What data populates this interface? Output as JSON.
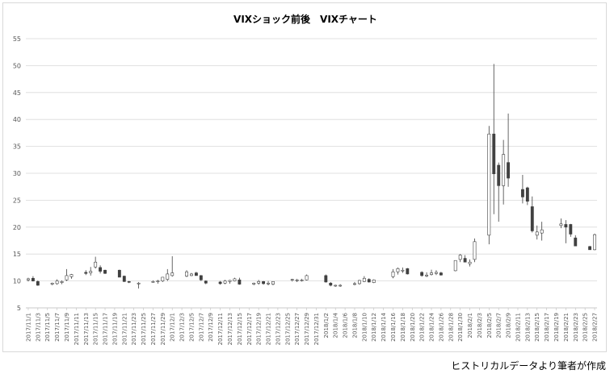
{
  "chart_data": {
    "type": "candlestick",
    "title": "VIXショック前後　VIXチャート",
    "xlabel": "",
    "ylabel": "",
    "ylim": [
      5,
      55
    ],
    "yticks": [
      5,
      10,
      15,
      20,
      25,
      30,
      35,
      40,
      45,
      50,
      55
    ],
    "grid": true,
    "up_color": "#ffffff",
    "down_color": "#404040",
    "x_tick_labels": [
      "2017/11/1",
      "2017/11/3",
      "2017/11/5",
      "2017/11/7",
      "2017/11/9",
      "2017/11/11",
      "2017/11/13",
      "2017/11/15",
      "2017/11/17",
      "2017/11/19",
      "2017/11/21",
      "2017/11/23",
      "2017/11/25",
      "2017/11/27",
      "2017/11/29",
      "2017/12/1",
      "2017/12/3",
      "2017/12/5",
      "2017/12/7",
      "2017/12/9",
      "2017/12/11",
      "2017/12/13",
      "2017/12/15",
      "2017/12/17",
      "2017/12/19",
      "2017/12/21",
      "2017/12/23",
      "2017/12/25",
      "2017/12/27",
      "2017/12/29",
      "2017/12/31",
      "2018/1/2",
      "2018/1/4",
      "2018/1/6",
      "2018/1/8",
      "2018/1/10",
      "2018/1/12",
      "2018/1/14",
      "2018/1/16",
      "2018/1/18",
      "2018/1/20",
      "2018/1/22",
      "2018/1/24",
      "2018/1/26",
      "2018/1/28",
      "2018/1/30",
      "2018/2/1",
      "2018/2/3",
      "2018/2/5",
      "2018/2/7",
      "2018/2/9",
      "2018/2/11",
      "2018/2/13",
      "2018/2/15",
      "2018/2/17",
      "2018/2/19",
      "2018/2/21",
      "2018/2/23",
      "2018/2/25",
      "2018/2/27"
    ],
    "candles": [
      {
        "date": "2017/11/1",
        "open": 10.2,
        "high": 10.6,
        "low": 9.9,
        "close": 10.4
      },
      {
        "date": "2017/11/2",
        "open": 10.5,
        "high": 10.9,
        "low": 9.9,
        "close": 10.0
      },
      {
        "date": "2017/11/3",
        "open": 9.9,
        "high": 10.1,
        "low": 9.1,
        "close": 9.2
      },
      {
        "date": "2017/11/6",
        "open": 9.4,
        "high": 9.7,
        "low": 9.2,
        "close": 9.6
      },
      {
        "date": "2017/11/7",
        "open": 9.5,
        "high": 10.3,
        "low": 9.3,
        "close": 10.0
      },
      {
        "date": "2017/11/8",
        "open": 9.7,
        "high": 10.1,
        "low": 9.4,
        "close": 9.9
      },
      {
        "date": "2017/11/9",
        "open": 10.2,
        "high": 12.2,
        "low": 10.0,
        "close": 11.0
      },
      {
        "date": "2017/11/10",
        "open": 10.8,
        "high": 11.3,
        "low": 10.4,
        "close": 11.2
      },
      {
        "date": "2017/11/13",
        "open": 11.6,
        "high": 12.0,
        "low": 11.1,
        "close": 11.4
      },
      {
        "date": "2017/11/14",
        "open": 11.5,
        "high": 12.6,
        "low": 11.0,
        "close": 11.8
      },
      {
        "date": "2017/11/15",
        "open": 12.6,
        "high": 14.5,
        "low": 12.3,
        "close": 13.5
      },
      {
        "date": "2017/11/16",
        "open": 12.5,
        "high": 12.9,
        "low": 11.4,
        "close": 11.8
      },
      {
        "date": "2017/11/17",
        "open": 12.0,
        "high": 12.1,
        "low": 11.3,
        "close": 11.4
      },
      {
        "date": "2017/11/20",
        "open": 12.0,
        "high": 12.1,
        "low": 10.7,
        "close": 10.7
      },
      {
        "date": "2017/11/21",
        "open": 10.9,
        "high": 11.0,
        "low": 9.8,
        "close": 9.9
      },
      {
        "date": "2017/11/22",
        "open": 9.9,
        "high": 10.0,
        "low": 9.6,
        "close": 9.8
      },
      {
        "date": "2017/11/24",
        "open": 9.6,
        "high": 9.8,
        "low": 8.6,
        "close": 9.6
      },
      {
        "date": "2017/11/27",
        "open": 9.9,
        "high": 10.1,
        "low": 9.7,
        "close": 9.9
      },
      {
        "date": "2017/11/28",
        "open": 9.9,
        "high": 10.2,
        "low": 9.5,
        "close": 10.0
      },
      {
        "date": "2017/11/29",
        "open": 10.0,
        "high": 10.7,
        "low": 9.8,
        "close": 10.7
      },
      {
        "date": "2017/11/30",
        "open": 10.3,
        "high": 12.2,
        "low": 10.0,
        "close": 11.3
      },
      {
        "date": "2017/12/1",
        "open": 11.0,
        "high": 14.6,
        "low": 10.8,
        "close": 11.5
      },
      {
        "date": "2017/12/4",
        "open": 10.9,
        "high": 12.0,
        "low": 10.7,
        "close": 11.7
      },
      {
        "date": "2017/12/5",
        "open": 11.0,
        "high": 11.5,
        "low": 10.9,
        "close": 11.3
      },
      {
        "date": "2017/12/6",
        "open": 11.5,
        "high": 11.7,
        "low": 11.0,
        "close": 11.0
      },
      {
        "date": "2017/12/7",
        "open": 11.0,
        "high": 11.1,
        "low": 10.0,
        "close": 10.2
      },
      {
        "date": "2017/12/8",
        "open": 10.0,
        "high": 10.1,
        "low": 9.4,
        "close": 9.6
      },
      {
        "date": "2017/12/11",
        "open": 9.8,
        "high": 10.0,
        "low": 9.3,
        "close": 9.5
      },
      {
        "date": "2017/12/12",
        "open": 9.6,
        "high": 10.2,
        "low": 9.4,
        "close": 10.0
      },
      {
        "date": "2017/12/13",
        "open": 9.9,
        "high": 10.2,
        "low": 9.5,
        "close": 10.1
      },
      {
        "date": "2017/12/14",
        "open": 10.0,
        "high": 10.6,
        "low": 9.9,
        "close": 10.4
      },
      {
        "date": "2017/12/15",
        "open": 10.2,
        "high": 10.6,
        "low": 9.3,
        "close": 9.4
      },
      {
        "date": "2017/12/18",
        "open": 9.4,
        "high": 9.7,
        "low": 9.2,
        "close": 9.6
      },
      {
        "date": "2017/12/19",
        "open": 9.6,
        "high": 10.2,
        "low": 9.3,
        "close": 9.9
      },
      {
        "date": "2017/12/20",
        "open": 9.9,
        "high": 10.0,
        "low": 9.3,
        "close": 9.5
      },
      {
        "date": "2017/12/21",
        "open": 9.5,
        "high": 10.0,
        "low": 9.2,
        "close": 9.6
      },
      {
        "date": "2017/12/22",
        "open": 9.4,
        "high": 9.9,
        "low": 9.2,
        "close": 9.9
      },
      {
        "date": "2017/12/26",
        "open": 10.2,
        "high": 10.4,
        "low": 9.9,
        "close": 10.3
      },
      {
        "date": "2017/12/27",
        "open": 10.1,
        "high": 10.4,
        "low": 9.8,
        "close": 10.2
      },
      {
        "date": "2017/12/28",
        "open": 10.1,
        "high": 10.4,
        "low": 9.9,
        "close": 10.2
      },
      {
        "date": "2017/12/29",
        "open": 10.2,
        "high": 11.2,
        "low": 10.1,
        "close": 11.0
      },
      {
        "date": "2018/1/2",
        "open": 11.0,
        "high": 11.2,
        "low": 9.7,
        "close": 9.8
      },
      {
        "date": "2018/1/3",
        "open": 9.6,
        "high": 9.8,
        "low": 9.0,
        "close": 9.2
      },
      {
        "date": "2018/1/4",
        "open": 9.2,
        "high": 9.3,
        "low": 8.9,
        "close": 9.2
      },
      {
        "date": "2018/1/5",
        "open": 9.1,
        "high": 9.4,
        "low": 8.9,
        "close": 9.2
      },
      {
        "date": "2018/1/8",
        "open": 9.4,
        "high": 9.8,
        "low": 9.2,
        "close": 9.5
      },
      {
        "date": "2018/1/9",
        "open": 9.5,
        "high": 10.2,
        "low": 9.3,
        "close": 10.1
      },
      {
        "date": "2018/1/10",
        "open": 9.9,
        "high": 10.9,
        "low": 9.8,
        "close": 10.5
      },
      {
        "date": "2018/1/11",
        "open": 10.3,
        "high": 10.5,
        "low": 9.7,
        "close": 9.8
      },
      {
        "date": "2018/1/12",
        "open": 9.7,
        "high": 10.3,
        "low": 9.6,
        "close": 10.2
      },
      {
        "date": "2018/1/16",
        "open": 10.8,
        "high": 12.2,
        "low": 10.5,
        "close": 11.7
      },
      {
        "date": "2018/1/17",
        "open": 11.7,
        "high": 12.5,
        "low": 11.2,
        "close": 12.3
      },
      {
        "date": "2018/1/18",
        "open": 12.0,
        "high": 12.5,
        "low": 11.5,
        "close": 12.0
      },
      {
        "date": "2018/1/19",
        "open": 12.3,
        "high": 12.4,
        "low": 11.2,
        "close": 11.3
      },
      {
        "date": "2018/1/22",
        "open": 11.6,
        "high": 11.8,
        "low": 10.8,
        "close": 11.0
      },
      {
        "date": "2018/1/23",
        "open": 10.9,
        "high": 11.6,
        "low": 10.7,
        "close": 11.1
      },
      {
        "date": "2018/1/24",
        "open": 11.2,
        "high": 12.1,
        "low": 11.0,
        "close": 11.5
      },
      {
        "date": "2018/1/25",
        "open": 11.4,
        "high": 12.0,
        "low": 11.1,
        "close": 11.6
      },
      {
        "date": "2018/1/26",
        "open": 11.5,
        "high": 11.7,
        "low": 11.0,
        "close": 11.1
      },
      {
        "date": "2018/1/29",
        "open": 11.9,
        "high": 13.8,
        "low": 11.8,
        "close": 13.8
      },
      {
        "date": "2018/1/30",
        "open": 14.0,
        "high": 15.0,
        "low": 13.5,
        "close": 14.8
      },
      {
        "date": "2018/1/31",
        "open": 14.2,
        "high": 14.8,
        "low": 13.5,
        "close": 13.5
      },
      {
        "date": "2018/2/1",
        "open": 13.2,
        "high": 14.0,
        "low": 12.7,
        "close": 13.5
      },
      {
        "date": "2018/2/2",
        "open": 14.0,
        "high": 17.9,
        "low": 13.5,
        "close": 17.3
      },
      {
        "date": "2018/2/5",
        "open": 18.5,
        "high": 38.8,
        "low": 16.8,
        "close": 37.3
      },
      {
        "date": "2018/2/6",
        "open": 37.3,
        "high": 50.3,
        "low": 22.4,
        "close": 29.9
      },
      {
        "date": "2018/2/7",
        "open": 31.5,
        "high": 32.0,
        "low": 21.0,
        "close": 27.7
      },
      {
        "date": "2018/2/8",
        "open": 27.7,
        "high": 36.2,
        "low": 24.2,
        "close": 33.5
      },
      {
        "date": "2018/2/9",
        "open": 32.0,
        "high": 41.1,
        "low": 27.5,
        "close": 29.1
      },
      {
        "date": "2018/2/12",
        "open": 27.0,
        "high": 29.7,
        "low": 24.4,
        "close": 25.6
      },
      {
        "date": "2018/2/13",
        "open": 27.3,
        "high": 27.5,
        "low": 24.1,
        "close": 24.8
      },
      {
        "date": "2018/2/14",
        "open": 23.8,
        "high": 25.7,
        "low": 19.0,
        "close": 19.3
      },
      {
        "date": "2018/2/15",
        "open": 18.5,
        "high": 20.3,
        "low": 17.7,
        "close": 19.1
      },
      {
        "date": "2018/2/16",
        "open": 18.9,
        "high": 21.0,
        "low": 17.5,
        "close": 19.5
      },
      {
        "date": "2018/2/20",
        "open": 20.3,
        "high": 21.6,
        "low": 19.8,
        "close": 20.6
      },
      {
        "date": "2018/2/21",
        "open": 20.5,
        "high": 21.3,
        "low": 17.0,
        "close": 20.0
      },
      {
        "date": "2018/2/22",
        "open": 20.5,
        "high": 20.6,
        "low": 18.2,
        "close": 18.7
      },
      {
        "date": "2018/2/23",
        "open": 18.0,
        "high": 18.5,
        "low": 16.5,
        "close": 16.5
      },
      {
        "date": "2018/2/26",
        "open": 16.4,
        "high": 16.5,
        "low": 15.8,
        "close": 15.8
      },
      {
        "date": "2018/2/27",
        "open": 15.8,
        "high": 18.8,
        "low": 15.7,
        "close": 18.6
      }
    ]
  },
  "source_note": "ヒストリカルデータより筆者が作成"
}
